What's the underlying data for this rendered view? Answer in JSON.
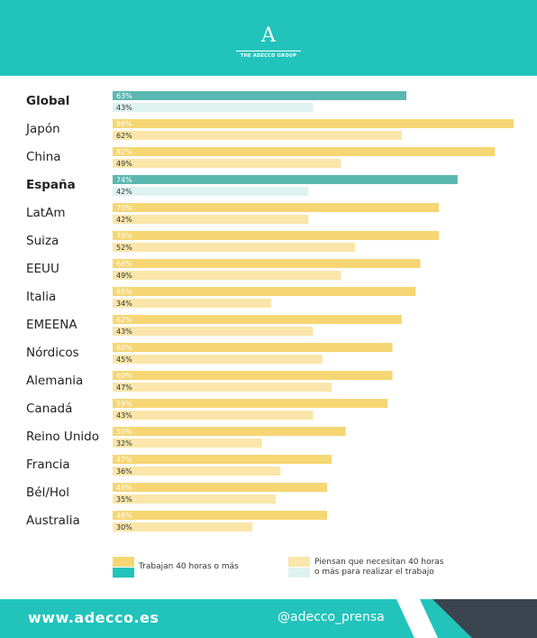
{
  "header": {
    "logo_letter": "A",
    "brand": "THE ADECCO GROUP"
  },
  "colors": {
    "teal": "#22c3bb",
    "teal_dark": "#5bb8b1",
    "teal_light": "#def2f0",
    "yellow": "#f6d673",
    "yellow_light": "#fae6a9",
    "dark": "#3b4550"
  },
  "chart_data": {
    "type": "bar",
    "orientation": "horizontal",
    "categories": [
      "Global",
      "Japón",
      "China",
      "España",
      "LatAm",
      "Suiza",
      "EEUU",
      "Italia",
      "EMEENA",
      "Nórdicos",
      "Alemania",
      "Canadá",
      "Reino Unido",
      "Francia",
      "Bél/Hol",
      "Australia"
    ],
    "highlighted": [
      "Global",
      "España"
    ],
    "series": [
      {
        "name": "Trabajan 40 horas o más",
        "values": [
          63,
          86,
          82,
          74,
          70,
          70,
          66,
          65,
          62,
          60,
          60,
          59,
          50,
          47,
          46,
          46
        ]
      },
      {
        "name": "Piensan que necesitan 40 horas o más para realizar el trabajo",
        "values": [
          43,
          62,
          49,
          42,
          42,
          52,
          49,
          34,
          43,
          45,
          47,
          43,
          32,
          36,
          35,
          30
        ]
      }
    ],
    "value_suffix": "%",
    "xlim": [
      0,
      86
    ],
    "grid": false,
    "legend_position": "bottom"
  },
  "legend": {
    "left": {
      "label": "Trabajan 40 horas o más"
    },
    "right": {
      "line1": "Piensan que necesitan 40 horas",
      "line2": "o más para realizar el trabajo"
    }
  },
  "footer": {
    "url": "www.adecco.es",
    "handle": "@adecco_prensa"
  }
}
